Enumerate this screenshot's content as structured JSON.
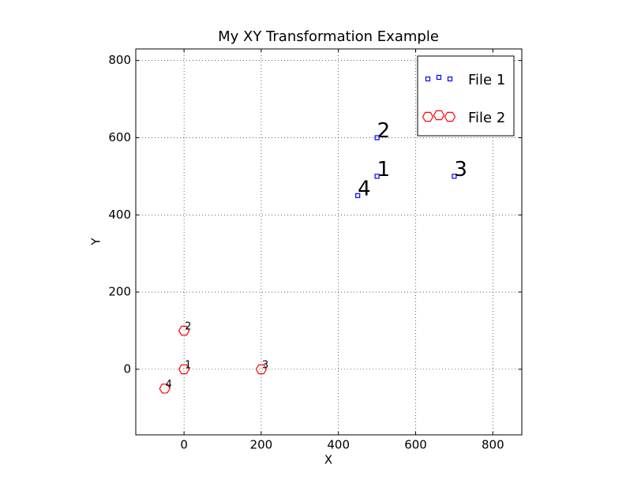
{
  "chart_data": {
    "type": "scatter",
    "title": "My XY Transformation Example",
    "x_label": "X",
    "y_label": "Y",
    "series": [
      {
        "name": "File 1",
        "color": "#0000ff",
        "marker": "square",
        "x": [
          500,
          500,
          700,
          450
        ],
        "values": [
          500,
          600,
          500,
          450
        ],
        "labels": [
          "1",
          "2",
          "3",
          "4"
        ]
      },
      {
        "name": "File 2",
        "color": "#ff0000",
        "marker": "hexagon",
        "x": [
          0,
          0,
          200,
          -50
        ],
        "values": [
          0,
          100,
          0,
          -50
        ],
        "labels": [
          "1",
          "2",
          "3",
          "4"
        ]
      }
    ],
    "xlim": [
      -125,
      875
    ],
    "ylim": [
      -170,
      830
    ],
    "xticks": [
      0,
      200,
      400,
      600,
      800
    ],
    "yticks": [
      0,
      200,
      400,
      600,
      800
    ],
    "grid": true,
    "legend": "upper right"
  }
}
